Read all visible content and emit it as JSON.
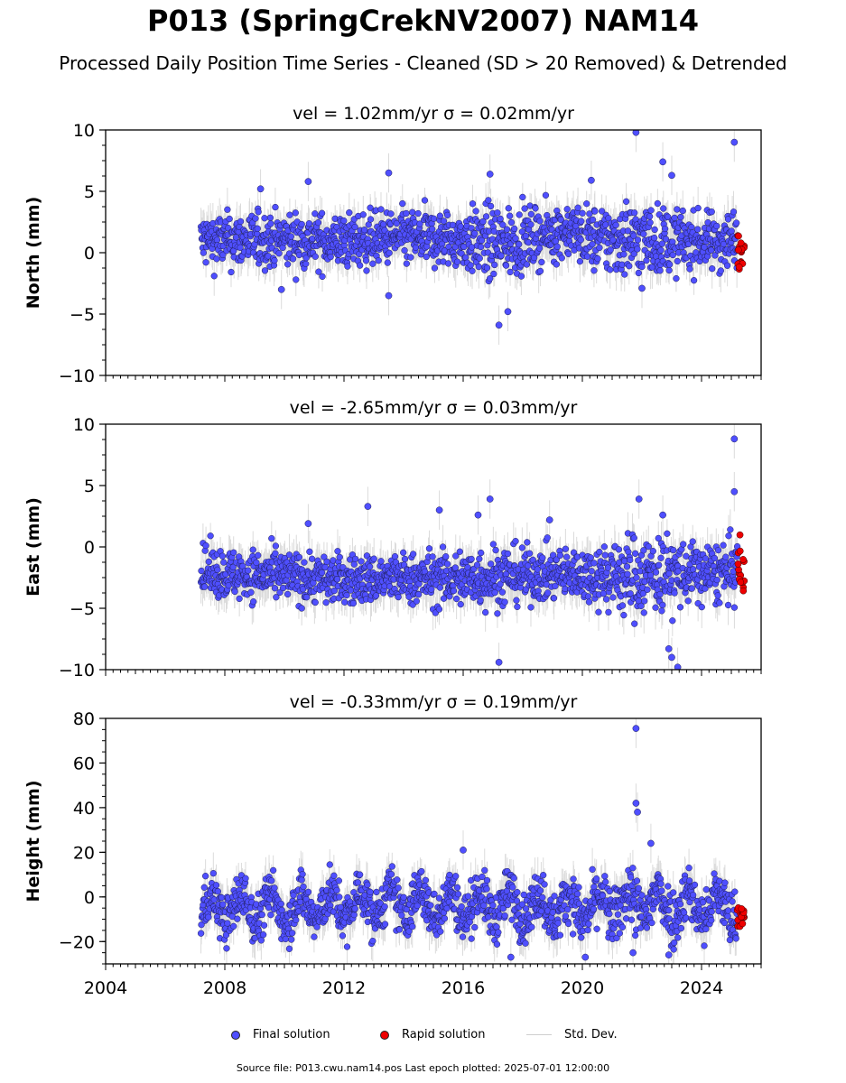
{
  "figure": {
    "title": "P013 (SpringCrekNV2007) NAM14",
    "subtitle": "Processed Daily Position Time Series - Cleaned (SD > 20 Removed) & Detrended",
    "source_note": "Source file: P013.cwu.nam14.pos  Last epoch plotted: 2025-07-01 12:00:00"
  },
  "legend": {
    "placement": "bottom-center",
    "items": [
      {
        "label": "Final solution",
        "color": "#4f4fff",
        "kind": "marker"
      },
      {
        "label": "Rapid solution",
        "color": "#ee0000",
        "kind": "marker"
      },
      {
        "label": "Std. Dev.",
        "color": "#cfcfcf",
        "kind": "line"
      }
    ]
  },
  "chart_data": [
    {
      "type": "scatter",
      "panel": "north",
      "title": "vel = 1.02mm/yr   σ = 0.02mm/yr",
      "xlabel": "",
      "ylabel": "North (mm)",
      "xlim": [
        2004,
        2026
      ],
      "ylim": [
        -10,
        10
      ],
      "xticks": [
        2004,
        2008,
        2012,
        2016,
        2020,
        2024
      ],
      "yticks": [
        -10,
        -5,
        0,
        5,
        10
      ],
      "yminor_step": 1.25,
      "data_start": 2007.2,
      "final_end": 2025.2,
      "rapid_range": [
        2025.2,
        2025.45
      ],
      "final_series_envelope": {
        "x": [
          2007.2,
          2008,
          2010,
          2012,
          2014,
          2016,
          2017,
          2018,
          2019.5,
          2020.5,
          2021.5,
          2022.5,
          2024,
          2025.2
        ],
        "center": [
          1.0,
          1.0,
          1.0,
          0.9,
          1.3,
          1.0,
          0.7,
          1.0,
          1.9,
          1.0,
          1.2,
          1.0,
          0.9,
          1.0
        ],
        "spread": [
          1.1,
          1.1,
          1.1,
          1.1,
          1.1,
          1.2,
          1.6,
          1.2,
          1.1,
          1.3,
          1.6,
          1.4,
          1.1,
          1.3
        ]
      },
      "rapid_series": {
        "center": 0.6,
        "spread": 0.8
      },
      "notable_points": [
        {
          "x": 2009.2,
          "y": 5.2
        },
        {
          "x": 2010.8,
          "y": 5.8
        },
        {
          "x": 2013.5,
          "y": 6.5
        },
        {
          "x": 2016.9,
          "y": 6.4
        },
        {
          "x": 2017.2,
          "y": -5.9
        },
        {
          "x": 2017.5,
          "y": -4.8
        },
        {
          "x": 2020.3,
          "y": 5.9
        },
        {
          "x": 2021.8,
          "y": 9.8
        },
        {
          "x": 2022.7,
          "y": 7.4
        },
        {
          "x": 2023.0,
          "y": 6.3
        },
        {
          "x": 2025.1,
          "y": 9.0
        },
        {
          "x": 2013.5,
          "y": -3.5
        },
        {
          "x": 2009.9,
          "y": -3.0
        },
        {
          "x": 2022.0,
          "y": -2.9
        }
      ]
    },
    {
      "type": "scatter",
      "panel": "east",
      "title": "vel = -2.65mm/yr   σ = 0.03mm/yr",
      "xlabel": "",
      "ylabel": "East (mm)",
      "xlim": [
        2004,
        2026
      ],
      "ylim": [
        -10,
        10
      ],
      "xticks": [
        2004,
        2008,
        2012,
        2016,
        2020,
        2024
      ],
      "yticks": [
        -10,
        -5,
        0,
        5,
        10
      ],
      "yminor_step": 1.25,
      "data_start": 2007.2,
      "final_end": 2025.2,
      "rapid_range": [
        2025.2,
        2025.45
      ],
      "final_series_envelope": {
        "x": [
          2007.2,
          2008,
          2010,
          2012,
          2014,
          2016,
          2017,
          2018,
          2020,
          2021.5,
          2022.5,
          2024,
          2025.2
        ],
        "center": [
          -1.9,
          -2.2,
          -2.4,
          -2.7,
          -2.6,
          -2.6,
          -2.4,
          -2.3,
          -2.2,
          -2.4,
          -2.2,
          -2.2,
          -2.0
        ],
        "spread": [
          1.0,
          1.0,
          1.0,
          1.0,
          1.0,
          1.2,
          1.3,
          1.1,
          1.0,
          1.7,
          1.6,
          1.2,
          1.3
        ]
      },
      "rapid_series": {
        "center": -2.0,
        "spread": 1.0
      },
      "notable_points": [
        {
          "x": 2010.8,
          "y": 1.9
        },
        {
          "x": 2012.8,
          "y": 3.3
        },
        {
          "x": 2015.2,
          "y": 3.0
        },
        {
          "x": 2016.5,
          "y": 2.6
        },
        {
          "x": 2016.9,
          "y": 3.9
        },
        {
          "x": 2017.2,
          "y": -9.4
        },
        {
          "x": 2018.9,
          "y": 2.2
        },
        {
          "x": 2021.9,
          "y": 3.9
        },
        {
          "x": 2022.7,
          "y": 2.6
        },
        {
          "x": 2022.9,
          "y": -8.3
        },
        {
          "x": 2023.0,
          "y": -9.0
        },
        {
          "x": 2023.2,
          "y": -9.8
        },
        {
          "x": 2025.1,
          "y": 8.8
        },
        {
          "x": 2025.1,
          "y": 4.5
        }
      ]
    },
    {
      "type": "scatter",
      "panel": "height",
      "title": "vel = -0.33mm/yr   σ = 0.19mm/yr",
      "xlabel": "",
      "ylabel": "Height (mm)",
      "xlim": [
        2004,
        2026
      ],
      "ylim": [
        -30,
        80
      ],
      "xticks": [
        2004,
        2008,
        2012,
        2016,
        2020,
        2024
      ],
      "yticks": [
        -20,
        0,
        20,
        40,
        60,
        80
      ],
      "yminor_step": 5,
      "data_start": 2007.2,
      "final_end": 2025.2,
      "rapid_range": [
        2025.2,
        2025.45
      ],
      "final_series_envelope": {
        "x": [
          2007.2,
          2010,
          2014,
          2018,
          2020,
          2022,
          2024,
          2025.2
        ],
        "center": [
          -5,
          -5,
          -3,
          -4,
          -5,
          -3,
          -4,
          -5
        ],
        "spread": [
          5.5,
          5.5,
          5.5,
          5.5,
          5.5,
          7,
          6,
          6
        ],
        "seasonal_amplitude": 6
      },
      "rapid_series": {
        "center": -9,
        "spread": 3.5
      },
      "notable_points": [
        {
          "x": 2021.8,
          "y": 75.5
        },
        {
          "x": 2021.8,
          "y": 42
        },
        {
          "x": 2021.85,
          "y": 38
        },
        {
          "x": 2022.3,
          "y": 24
        },
        {
          "x": 2016.0,
          "y": 21
        },
        {
          "x": 2020.1,
          "y": -27
        },
        {
          "x": 2021.7,
          "y": -25
        },
        {
          "x": 2022.9,
          "y": -26
        },
        {
          "x": 2017.6,
          "y": -27
        }
      ]
    }
  ]
}
